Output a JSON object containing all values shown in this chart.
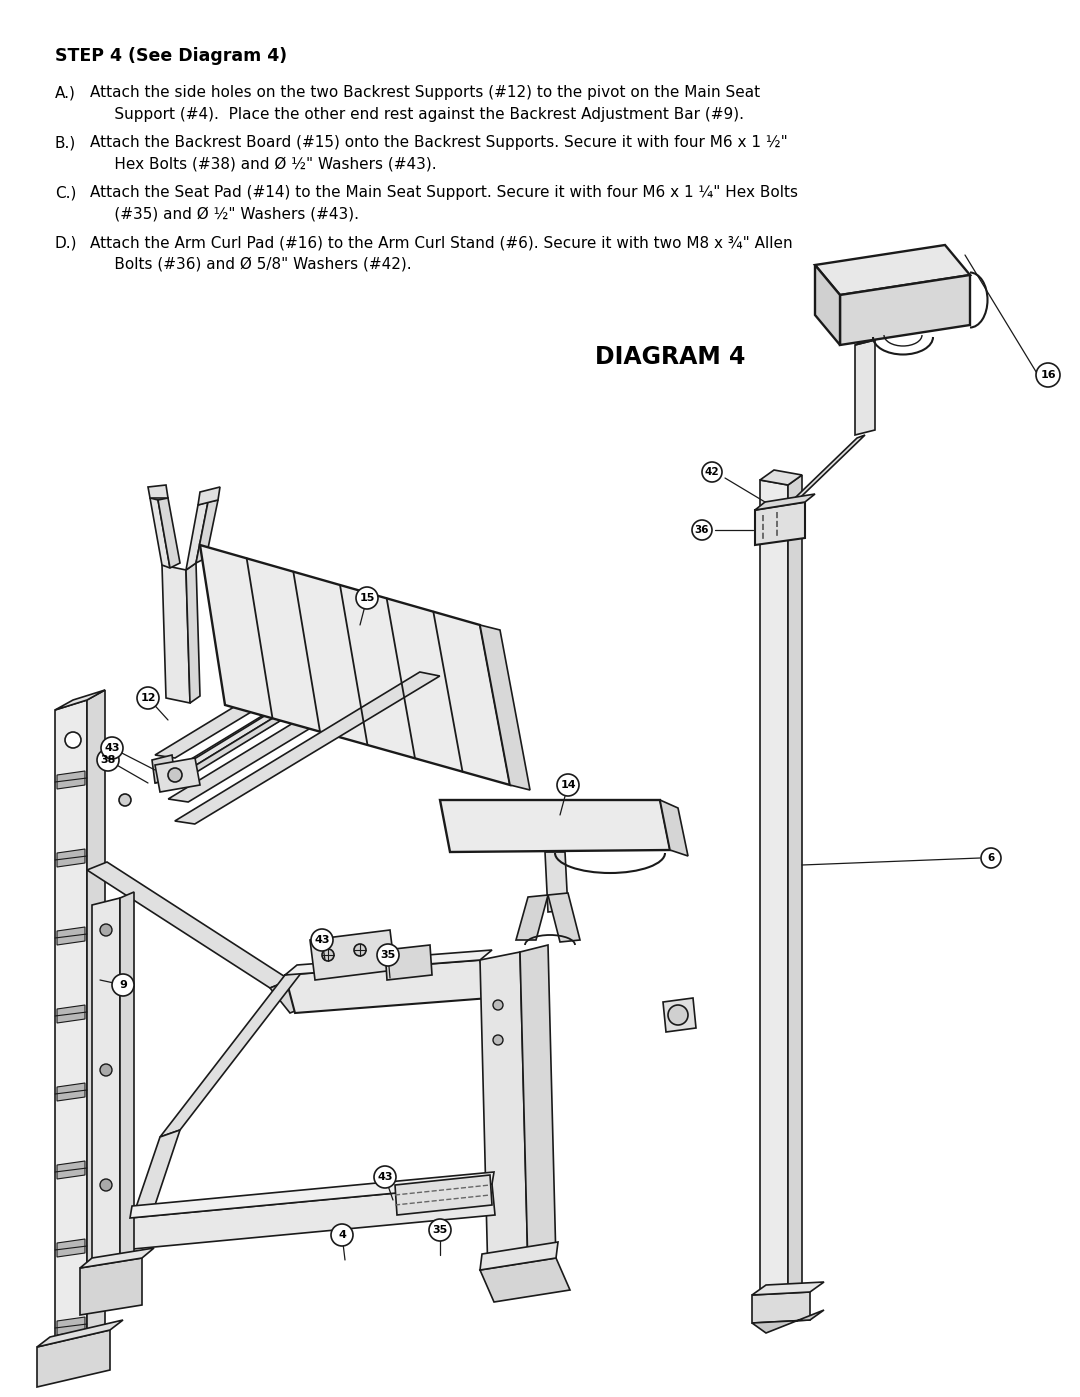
{
  "title": "STEP 4 (See Diagram 4)",
  "diagram_title": "DIAGRAM 4",
  "background_color": "#ffffff",
  "text_color": "#000000",
  "line_color": "#1a1a1a",
  "fill_color": "#f0f0f0",
  "dark_fill": "#c8c8c8",
  "instructions": [
    {
      "label": "A.)",
      "text": "Attach the side holes on the two Backrest Supports (#12) to the pivot on the Main Seat\n     Support (#4).  Place the other end rest against the Backrest Adjustment Bar (#9)."
    },
    {
      "label": "B.)",
      "text": "Attach the Backrest Board (#15) onto the Backrest Supports. Secure it with four M6 x 1 ½\"\n     Hex Bolts (#38) and Ø ½\" Washers (#43)."
    },
    {
      "label": "C.)",
      "text": "Attach the Seat Pad (#14) to the Main Seat Support. Secure it with four M6 x 1 ¼\" Hex Bolts\n     (#35) and Ø ½\" Washers (#43)."
    },
    {
      "label": "D.)",
      "text": "Attach the Arm Curl Pad (#16) to the Arm Curl Stand (#6). Secure it with two M8 x ¾\" Allen\n     Bolts (#36) and Ø 5/8\" Washers (#42)."
    }
  ],
  "figsize": [
    10.8,
    13.97
  ],
  "dpi": 100
}
